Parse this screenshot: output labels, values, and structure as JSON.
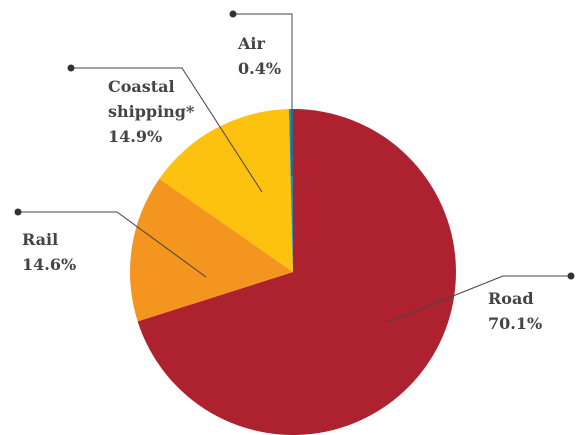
{
  "chart_data": {
    "type": "pie",
    "slices": [
      {
        "label": "Road",
        "value_text": "70.1%",
        "value": 70.1,
        "color": "#ae2230"
      },
      {
        "label": "Rail",
        "value_text": "14.6%",
        "value": 14.6,
        "color": "#f3951f"
      },
      {
        "label_lines": [
          "Coastal",
          "shipping*"
        ],
        "value_text": "14.9%",
        "value": 14.9,
        "color": "#fdc20f"
      },
      {
        "label": "Air",
        "value_text": "0.4%",
        "value": 0.4,
        "color": "#1f8fbf"
      }
    ]
  }
}
